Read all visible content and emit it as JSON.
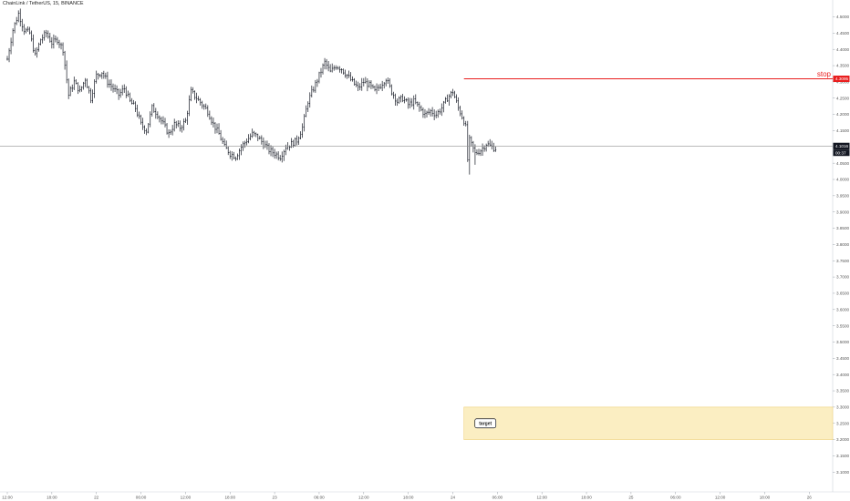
{
  "chart_title": "ChainLink / TetherUS, 15, BINANCE",
  "chart_data": {
    "type": "ohlc",
    "symbol": "ChainLink / TetherUS",
    "interval": "15",
    "exchange": "BINANCE",
    "ylim": [
      3.1,
      4.55
    ],
    "grid": false,
    "y_ticks": [
      "4.5000",
      "4.4500",
      "4.4000",
      "4.3500",
      "4.3000",
      "4.2500",
      "4.2000",
      "4.1500",
      "4.1000",
      "4.0500",
      "4.0000",
      "3.9500",
      "3.9000",
      "3.8500",
      "3.8000",
      "3.7500",
      "3.7000",
      "3.6500",
      "3.6000",
      "3.5500",
      "3.5000",
      "3.4500",
      "3.4000",
      "3.3500",
      "3.3000",
      "3.2500",
      "3.2000",
      "3.1500",
      "3.1000"
    ],
    "x_ticks": [
      {
        "label": "12:00",
        "i": 0
      },
      {
        "label": "18:00",
        "i": 24
      },
      {
        "label": "22",
        "i": 48
      },
      {
        "label": "06:00",
        "i": 72
      },
      {
        "label": "12:00",
        "i": 96
      },
      {
        "label": "18:00",
        "i": 120
      },
      {
        "label": "23",
        "i": 144
      },
      {
        "label": "06:00",
        "i": 168
      },
      {
        "label": "12:00",
        "i": 192
      },
      {
        "label": "18:00",
        "i": 216
      },
      {
        "label": "24",
        "i": 240
      },
      {
        "label": "06:00",
        "i": 264
      },
      {
        "label": "12:00",
        "i": 288
      },
      {
        "label": "18:00",
        "i": 312
      },
      {
        "label": "25",
        "i": 336
      },
      {
        "label": "06:00",
        "i": 360
      },
      {
        "label": "12:00",
        "i": 384
      },
      {
        "label": "18:00",
        "i": 408
      },
      {
        "label": "26",
        "i": 432
      }
    ],
    "bars_total": 264,
    "close_path": [
      [
        0,
        4.37
      ],
      [
        3,
        4.46
      ],
      [
        6,
        4.51
      ],
      [
        9,
        4.46
      ],
      [
        12,
        4.45
      ],
      [
        15,
        4.38
      ],
      [
        18,
        4.43
      ],
      [
        21,
        4.45
      ],
      [
        24,
        4.42
      ],
      [
        27,
        4.43
      ],
      [
        30,
        4.4
      ],
      [
        33,
        4.26
      ],
      [
        36,
        4.3
      ],
      [
        39,
        4.27
      ],
      [
        42,
        4.31
      ],
      [
        45,
        4.25
      ],
      [
        48,
        4.32
      ],
      [
        51,
        4.33
      ],
      [
        54,
        4.3
      ],
      [
        57,
        4.28
      ],
      [
        60,
        4.26
      ],
      [
        63,
        4.28
      ],
      [
        66,
        4.24
      ],
      [
        69,
        4.22
      ],
      [
        72,
        4.17
      ],
      [
        75,
        4.15
      ],
      [
        78,
        4.22
      ],
      [
        81,
        4.2
      ],
      [
        84,
        4.17
      ],
      [
        87,
        4.14
      ],
      [
        90,
        4.17
      ],
      [
        93,
        4.16
      ],
      [
        96,
        4.18
      ],
      [
        99,
        4.27
      ],
      [
        102,
        4.25
      ],
      [
        105,
        4.23
      ],
      [
        108,
        4.21
      ],
      [
        111,
        4.17
      ],
      [
        114,
        4.14
      ],
      [
        117,
        4.1
      ],
      [
        120,
        4.08
      ],
      [
        123,
        4.07
      ],
      [
        126,
        4.1
      ],
      [
        129,
        4.12
      ],
      [
        132,
        4.14
      ],
      [
        135,
        4.13
      ],
      [
        138,
        4.11
      ],
      [
        141,
        4.09
      ],
      [
        144,
        4.08
      ],
      [
        147,
        4.07
      ],
      [
        150,
        4.1
      ],
      [
        153,
        4.11
      ],
      [
        156,
        4.12
      ],
      [
        159,
        4.16
      ],
      [
        162,
        4.24
      ],
      [
        165,
        4.28
      ],
      [
        168,
        4.32
      ],
      [
        171,
        4.36
      ],
      [
        174,
        4.33
      ],
      [
        177,
        4.35
      ],
      [
        180,
        4.34
      ],
      [
        183,
        4.32
      ],
      [
        186,
        4.3
      ],
      [
        189,
        4.28
      ],
      [
        192,
        4.3
      ],
      [
        195,
        4.29
      ],
      [
        198,
        4.27
      ],
      [
        201,
        4.29
      ],
      [
        204,
        4.31
      ],
      [
        207,
        4.27
      ],
      [
        210,
        4.24
      ],
      [
        213,
        4.25
      ],
      [
        216,
        4.23
      ],
      [
        219,
        4.24
      ],
      [
        222,
        4.22
      ],
      [
        225,
        4.2
      ],
      [
        228,
        4.21
      ],
      [
        231,
        4.2
      ],
      [
        234,
        4.22
      ],
      [
        237,
        4.25
      ],
      [
        240,
        4.27
      ],
      [
        243,
        4.22
      ],
      [
        246,
        4.18
      ],
      [
        249,
        4.12
      ],
      [
        252,
        4.08
      ],
      [
        255,
        4.09
      ],
      [
        258,
        4.11
      ],
      [
        261,
        4.1
      ],
      [
        263,
        4.095
      ]
    ],
    "last_price": "4.1016",
    "countdown": "00:37",
    "annotations": {
      "stop": {
        "text": "stop",
        "price": 4.3095,
        "price_label": "4.3095",
        "color": "#e91e1e",
        "from_i": 246
      },
      "target": {
        "text": "target",
        "from_i": 246,
        "price_low": 3.2,
        "price_high": 3.3
      }
    },
    "colors": {
      "bars": "#131722",
      "price_line": "#909090",
      "stop": "#e91e1e",
      "target_fill": "#fbeec2",
      "target_border": "#f1d27d"
    }
  }
}
